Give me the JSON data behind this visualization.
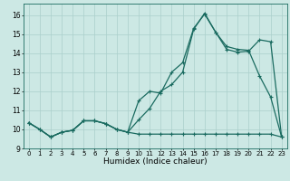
{
  "xlabel": "Humidex (Indice chaleur)",
  "bg_color": "#cce8e4",
  "grid_color": "#aacfcb",
  "line_color": "#1a6b60",
  "xlim": [
    -0.5,
    23.5
  ],
  "ylim": [
    9.0,
    16.6
  ],
  "xticks": [
    0,
    1,
    2,
    3,
    4,
    5,
    6,
    7,
    8,
    9,
    10,
    11,
    12,
    13,
    14,
    15,
    16,
    17,
    18,
    19,
    20,
    21,
    22,
    23
  ],
  "yticks": [
    9,
    10,
    11,
    12,
    13,
    14,
    15,
    16
  ],
  "line1_x": [
    0,
    1,
    2,
    3,
    4,
    5,
    6,
    7,
    8,
    9,
    10,
    11,
    12,
    13,
    14,
    15,
    16,
    17,
    18,
    19,
    20,
    21,
    22,
    23
  ],
  "line1_y": [
    10.35,
    10.0,
    9.6,
    9.85,
    9.95,
    10.45,
    10.45,
    10.3,
    10.0,
    9.85,
    9.75,
    9.75,
    9.75,
    9.75,
    9.75,
    9.75,
    9.75,
    9.75,
    9.75,
    9.75,
    9.75,
    9.75,
    9.75,
    9.6
  ],
  "line2_x": [
    0,
    1,
    2,
    3,
    4,
    5,
    6,
    7,
    8,
    9,
    10,
    11,
    12,
    13,
    14,
    15,
    16,
    17,
    18,
    19,
    20,
    21,
    22,
    23
  ],
  "line2_y": [
    10.35,
    10.0,
    9.6,
    9.85,
    9.95,
    10.45,
    10.45,
    10.3,
    10.0,
    9.85,
    11.5,
    12.0,
    11.9,
    13.0,
    13.5,
    15.3,
    16.05,
    15.1,
    14.35,
    14.2,
    14.15,
    12.8,
    11.7,
    9.6
  ],
  "line3_x": [
    0,
    1,
    2,
    3,
    4,
    5,
    6,
    7,
    8,
    9,
    10,
    11,
    12,
    13,
    14,
    15,
    16,
    17,
    18,
    19,
    20,
    21,
    22,
    23
  ],
  "line3_y": [
    10.35,
    10.0,
    9.6,
    9.85,
    9.95,
    10.45,
    10.45,
    10.3,
    10.0,
    9.85,
    10.5,
    11.1,
    12.0,
    12.35,
    13.0,
    15.25,
    16.1,
    15.1,
    14.2,
    14.05,
    14.1,
    14.7,
    14.6,
    9.6
  ]
}
